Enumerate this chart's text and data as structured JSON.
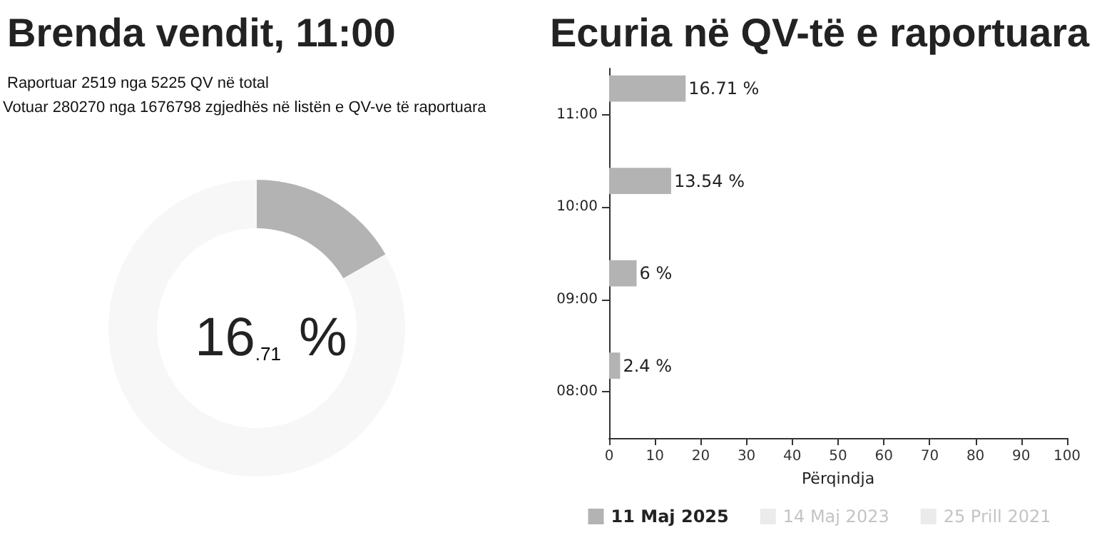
{
  "chart_data": [
    {
      "type": "donut",
      "title": "Brenda vendit, 11:00",
      "subtitle": "Raportuar 2519 nga 5225 QV në total",
      "annotations": [
        "Votuar 280270 nga 1676798 zgjedhës në listën e QV-ve të raportuara",
        "16$_{.71}$ %"
      ],
      "categories": [
        null,
        null
      ],
      "values": [
        16.71,
        83.29
      ],
      "colors": [
        "#b3b3b3",
        "#f7f7f7"
      ]
    },
    {
      "type": "bar",
      "orientation": "horizontal",
      "title": "Ecuria në QV-të e raportuara",
      "xlabel": "Përqindja",
      "categories": [
        "11:00",
        "10:00",
        "09:00",
        "08:00"
      ],
      "series": [
        {
          "name": "11 Maj 2025",
          "color": "#b3b3b3",
          "values": [
            16.71,
            13.54,
            6,
            2.4
          ],
          "value_labels": [
            "16.71 %",
            "13.54 %",
            "6 %",
            "2.4 %"
          ]
        },
        {
          "name": "14 Maj 2023",
          "color": "#ebebeb",
          "values": [
            null,
            null,
            null,
            null
          ]
        },
        {
          "name": "25 Prill 2021",
          "color": "#ebebeb",
          "values": [
            null,
            null,
            null,
            null
          ]
        }
      ],
      "xlim": [
        0,
        100
      ],
      "xticks": [
        0,
        10,
        20,
        30,
        40,
        50,
        60,
        70,
        80,
        90,
        100
      ],
      "grid": false,
      "legend": "bottom"
    }
  ]
}
